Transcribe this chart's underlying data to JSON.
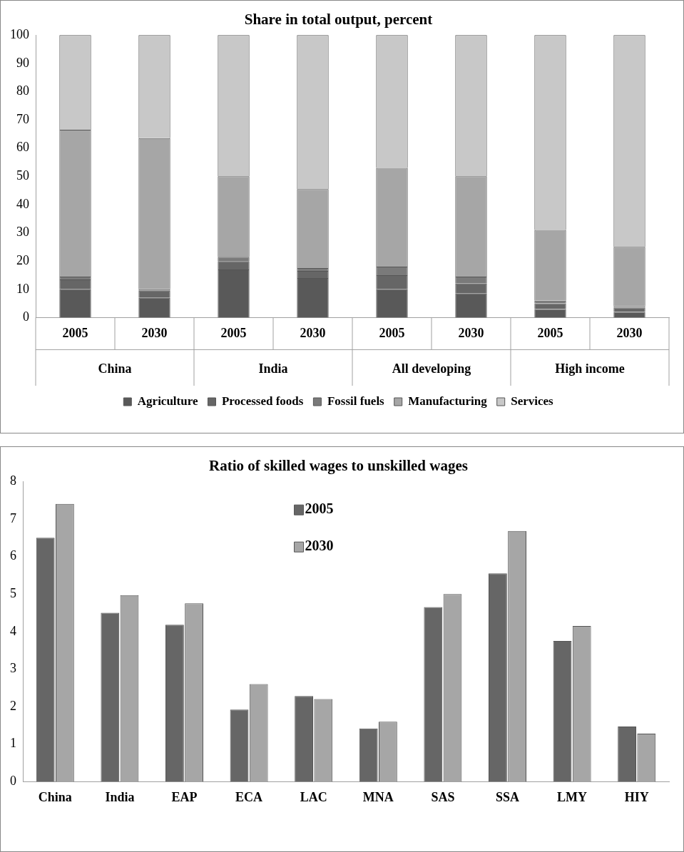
{
  "chart_data": [
    {
      "type": "bar",
      "title": "Share in total output, percent",
      "stacked": true,
      "categories": [
        "2005",
        "2030",
        "2005",
        "2030",
        "2005",
        "2030",
        "2005",
        "2030"
      ],
      "series": [
        {
          "name": "Agriculture",
          "color": "#595959",
          "values": [
            10,
            7,
            17,
            14,
            10,
            8.5,
            3,
            2
          ]
        },
        {
          "name": "Processed foods",
          "color": "#666666",
          "values": [
            3.5,
            2.5,
            3,
            2.5,
            5,
            3.5,
            2,
            1.5
          ]
        },
        {
          "name": "Fossil fuels",
          "color": "#7a7a7a",
          "values": [
            1,
            0.5,
            1.5,
            1,
            3,
            2.5,
            1,
            0.5
          ]
        },
        {
          "name": "Manufacturing",
          "color": "#a6a6a6",
          "values": [
            52,
            53.5,
            28.5,
            28,
            35,
            35.5,
            25,
            21
          ]
        },
        {
          "name": "Services",
          "color": "#c8c8c8",
          "values": [
            33.5,
            36.5,
            50,
            54.5,
            47,
            50,
            69,
            75
          ]
        }
      ],
      "annotations": [
        "China",
        "India",
        "All developing",
        "High income"
      ],
      "ylim": [
        0,
        100
      ],
      "yticks": [
        0,
        10,
        20,
        30,
        40,
        50,
        60,
        70,
        80,
        90,
        100
      ],
      "grid": false,
      "legend": "bottom"
    },
    {
      "type": "bar",
      "title": "Ratio of skilled wages to unskilled wages",
      "categories": [
        "China",
        "India",
        "EAP",
        "ECA",
        "LAC",
        "MNA",
        "SAS",
        "SSA",
        "LMY",
        "HIY"
      ],
      "series": [
        {
          "name": "2005",
          "color": "#666666",
          "values": [
            6.5,
            4.5,
            4.18,
            1.92,
            2.28,
            1.42,
            4.65,
            5.55,
            3.75,
            1.47
          ]
        },
        {
          "name": "2030",
          "color": "#a6a6a6",
          "values": [
            7.4,
            4.97,
            4.75,
            2.6,
            2.2,
            1.6,
            5.0,
            6.68,
            4.15,
            1.28
          ]
        }
      ],
      "ylim": [
        0,
        8
      ],
      "yticks": [
        0,
        1,
        2,
        3,
        4,
        5,
        6,
        7,
        8
      ],
      "grid": false,
      "legend": "top center"
    }
  ]
}
